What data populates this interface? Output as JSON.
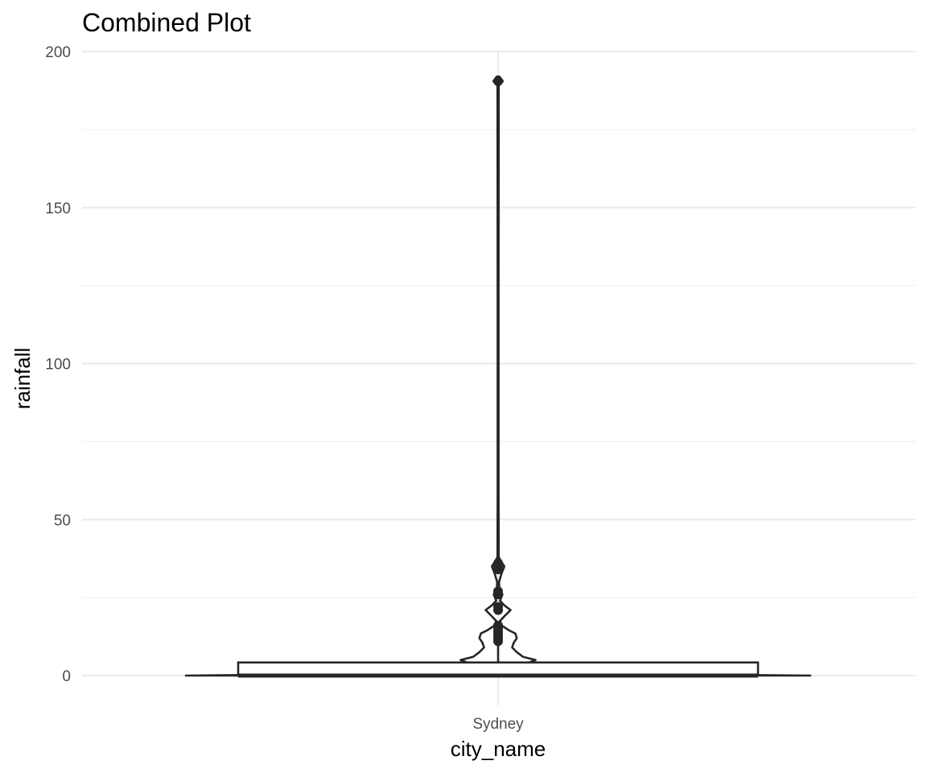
{
  "chart_data": {
    "type": "violin+boxplot",
    "title": "Combined Plot",
    "xlabel": "city_name",
    "ylabel": "rainfall",
    "categories": [
      "Sydney"
    ],
    "ylim": [
      0,
      200
    ],
    "yticks": [
      0,
      50,
      100,
      150,
      200
    ],
    "grid": true,
    "legend": "none",
    "boxplot": {
      "category": "Sydney",
      "min": 0,
      "q1": 0,
      "median": 0,
      "q3": 4.2,
      "whisker_high": 10.5,
      "outliers": [
        11,
        12,
        13,
        14,
        15,
        16,
        21,
        22,
        26,
        27,
        34,
        35,
        36,
        190.5
      ]
    },
    "violin": {
      "category": "Sydney",
      "density": [
        [
          0,
          1.0
        ],
        [
          0.5,
          0.47
        ],
        [
          1,
          0.09
        ],
        [
          1.5,
          0.07
        ],
        [
          2.5,
          0.07
        ],
        [
          3.5,
          0.08
        ],
        [
          4.2,
          0.1
        ],
        [
          5,
          0.12
        ],
        [
          6,
          0.08
        ],
        [
          7.5,
          0.06
        ],
        [
          9,
          0.045
        ],
        [
          10.5,
          0.05
        ],
        [
          12,
          0.06
        ],
        [
          13.5,
          0.055
        ],
        [
          14.5,
          0.035
        ],
        [
          16,
          0.012
        ],
        [
          17.5,
          0.006
        ],
        [
          19,
          0.02
        ],
        [
          21,
          0.04
        ],
        [
          22.5,
          0.02
        ],
        [
          24,
          0.006
        ],
        [
          26,
          0.014
        ],
        [
          28,
          0.004
        ],
        [
          30,
          0.003
        ],
        [
          33,
          0.012
        ],
        [
          35,
          0.02
        ],
        [
          36.5,
          0.01
        ],
        [
          38,
          0.002
        ],
        [
          60,
          0.0015
        ],
        [
          120,
          0.0015
        ],
        [
          189,
          0.002
        ],
        [
          190.5,
          0.015
        ],
        [
          192,
          0.004
        ]
      ]
    },
    "colors": {
      "geom": "#262626",
      "grid": "#ebebeb",
      "background": "#ffffff"
    }
  }
}
